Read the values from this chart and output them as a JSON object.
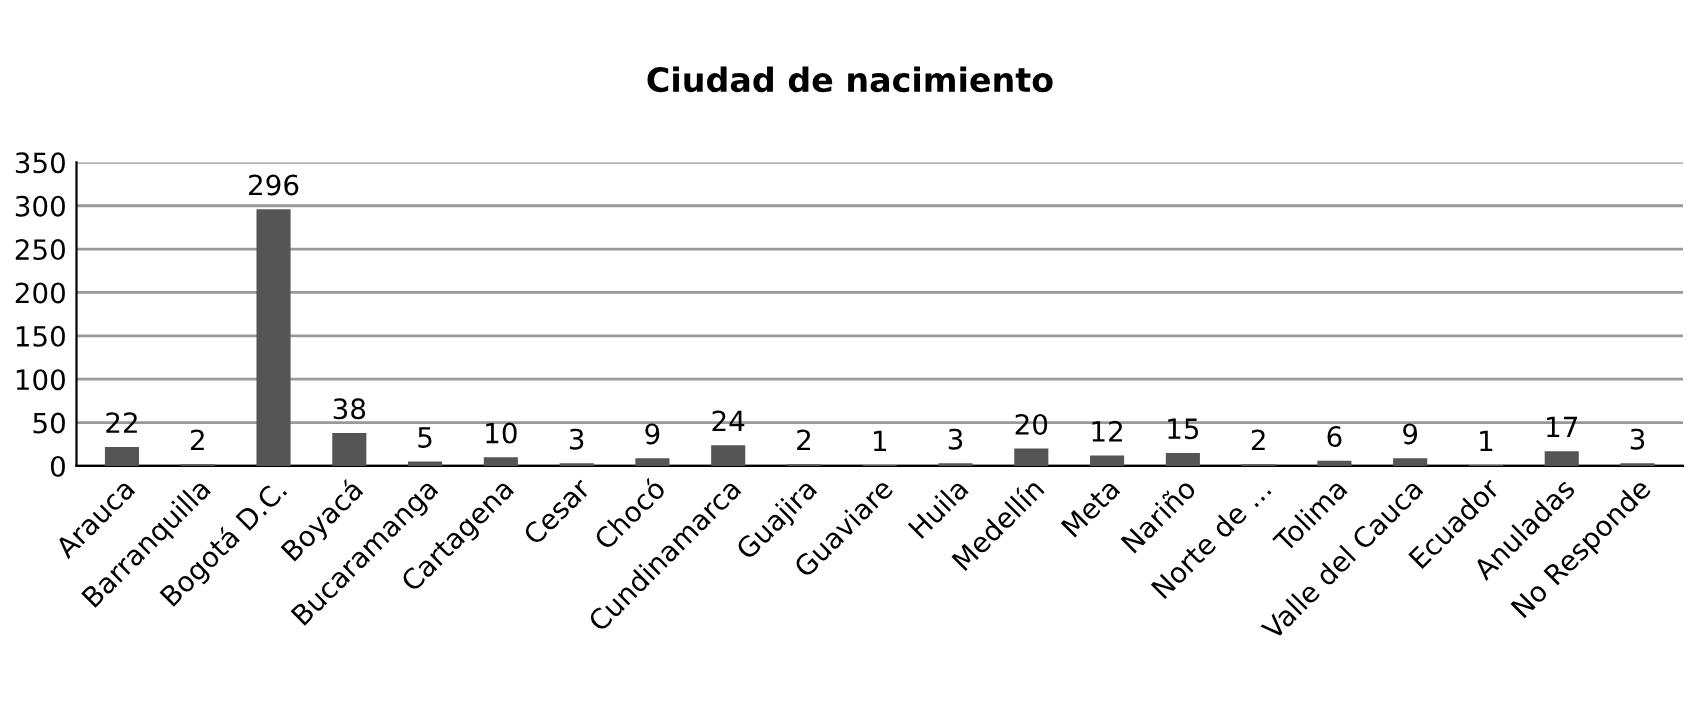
{
  "chart_data": {
    "type": "bar",
    "title": "Ciudad de nacimiento",
    "categories": [
      "Arauca",
      "Barranquilla",
      "Bogotá D.C.",
      "Boyacá",
      "Bucaramanga",
      "Cartagena",
      "Cesar",
      "Chocó",
      "Cundinamarca",
      "Guajira",
      "Guaviare",
      "Huila",
      "Medellín",
      "Meta",
      "Nariño",
      "Norte de ...",
      "Tolima",
      "Valle del Cauca",
      "Ecuador",
      "Anuladas",
      "No Responde"
    ],
    "values": [
      22,
      2,
      296,
      38,
      5,
      10,
      3,
      9,
      24,
      2,
      1,
      3,
      20,
      12,
      15,
      2,
      6,
      9,
      1,
      17,
      3
    ],
    "color": "#555555",
    "ylim": [
      0,
      350
    ],
    "yticks": [
      0,
      50,
      100,
      150,
      200,
      250,
      300,
      350
    ],
    "grid": "y",
    "data_labels": true
  }
}
